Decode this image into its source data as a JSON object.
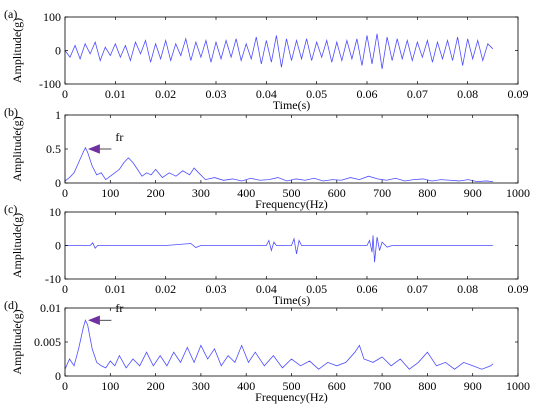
{
  "chart_data": [
    {
      "panel_label": "(a)",
      "type": "line",
      "xlabel": "Time(s)",
      "ylabel": "Amplitude(g)",
      "xlim": [
        0,
        0.09
      ],
      "ylim": [
        -100,
        100
      ],
      "xticks": [
        "0",
        "0.01",
        "0.02",
        "0.03",
        "0.04",
        "0.05",
        "0.06",
        "0.07",
        "0.08",
        "0.09"
      ],
      "yticks": [
        "-100",
        "0",
        "100"
      ],
      "line_color": "#4d4dff",
      "series": [
        {
          "x": [
            0.0,
            0.001,
            0.002,
            0.003,
            0.004,
            0.005,
            0.006,
            0.007,
            0.008,
            0.009,
            0.01,
            0.011,
            0.012,
            0.013,
            0.014,
            0.015,
            0.016,
            0.017,
            0.018,
            0.019,
            0.02,
            0.021,
            0.022,
            0.023,
            0.024,
            0.025,
            0.026,
            0.027,
            0.028,
            0.029,
            0.03,
            0.031,
            0.032,
            0.033,
            0.034,
            0.035,
            0.036,
            0.037,
            0.038,
            0.039,
            0.04,
            0.041,
            0.042,
            0.043,
            0.044,
            0.045,
            0.046,
            0.047,
            0.048,
            0.049,
            0.05,
            0.051,
            0.052,
            0.053,
            0.054,
            0.055,
            0.056,
            0.057,
            0.058,
            0.059,
            0.06,
            0.061,
            0.062,
            0.063,
            0.064,
            0.065,
            0.066,
            0.067,
            0.068,
            0.069,
            0.07,
            0.071,
            0.072,
            0.073,
            0.074,
            0.075,
            0.076,
            0.077,
            0.078,
            0.079,
            0.08,
            0.081,
            0.082,
            0.083,
            0.084,
            0.085
          ],
          "y": [
            0,
            -20,
            15,
            -25,
            20,
            -10,
            25,
            -30,
            10,
            -15,
            20,
            -20,
            15,
            -30,
            25,
            -10,
            30,
            -35,
            20,
            -25,
            30,
            -30,
            20,
            -15,
            35,
            -30,
            25,
            -20,
            30,
            -35,
            25,
            -25,
            30,
            -20,
            35,
            -30,
            20,
            -25,
            40,
            -40,
            30,
            -35,
            45,
            -50,
            35,
            -30,
            30,
            -25,
            35,
            -30,
            25,
            -20,
            30,
            -35,
            25,
            -30,
            30,
            -25,
            35,
            -45,
            45,
            -40,
            50,
            -55,
            40,
            -30,
            35,
            -25,
            30,
            -30,
            25,
            -20,
            30,
            -35,
            25,
            -25,
            30,
            -30,
            40,
            -45,
            35,
            -25,
            30,
            -30,
            20,
            5
          ]
        }
      ]
    },
    {
      "panel_label": "(b)",
      "type": "line",
      "xlabel": "Frequency(Hz)",
      "ylabel": "Amplitude(g)",
      "xlim": [
        0,
        1000
      ],
      "ylim": [
        0,
        1
      ],
      "xticks": [
        "0",
        "100",
        "200",
        "300",
        "400",
        "500",
        "600",
        "700",
        "800",
        "900",
        "1000"
      ],
      "yticks": [
        "0",
        "0.5",
        "1"
      ],
      "annotation": {
        "text": "fr",
        "x": 45,
        "y": 0.5
      },
      "line_color": "#4d4dff",
      "series": [
        {
          "x": [
            0,
            10,
            20,
            30,
            40,
            45,
            50,
            60,
            70,
            80,
            90,
            100,
            110,
            120,
            130,
            140,
            150,
            160,
            170,
            180,
            190,
            200,
            215,
            230,
            245,
            260,
            275,
            285,
            295,
            310,
            330,
            350,
            370,
            390,
            410,
            430,
            450,
            470,
            490,
            510,
            530,
            550,
            570,
            590,
            610,
            630,
            650,
            670,
            690,
            710,
            730,
            750,
            770,
            790,
            810,
            830,
            850,
            870,
            890,
            910,
            930,
            945
          ],
          "y": [
            0.03,
            0.08,
            0.15,
            0.3,
            0.45,
            0.52,
            0.45,
            0.25,
            0.12,
            0.15,
            0.05,
            0.1,
            0.15,
            0.2,
            0.3,
            0.37,
            0.3,
            0.2,
            0.1,
            0.15,
            0.12,
            0.2,
            0.08,
            0.15,
            0.1,
            0.18,
            0.12,
            0.22,
            0.15,
            0.05,
            0.08,
            0.04,
            0.06,
            0.03,
            0.07,
            0.04,
            0.05,
            0.08,
            0.03,
            0.06,
            0.04,
            0.07,
            0.03,
            0.05,
            0.04,
            0.08,
            0.05,
            0.1,
            0.06,
            0.04,
            0.07,
            0.03,
            0.05,
            0.06,
            0.03,
            0.05,
            0.04,
            0.03,
            0.05,
            0.02,
            0.03,
            0.02
          ]
        }
      ]
    },
    {
      "panel_label": "(c)",
      "type": "line",
      "xlabel": "Time(s)",
      "ylabel": "Amplitude(g)",
      "xlim": [
        0,
        0.09
      ],
      "ylim": [
        -10,
        10
      ],
      "xticks": [
        "0",
        "0.01",
        "0.02",
        "0.03",
        "0.04",
        "0.05",
        "0.06",
        "0.07",
        "0.08",
        "0.09"
      ],
      "yticks": [
        "-10",
        "0",
        "10"
      ],
      "line_color": "#4d4dff",
      "series": [
        {
          "x": [
            0.0,
            0.005,
            0.0055,
            0.006,
            0.0065,
            0.01,
            0.015,
            0.02,
            0.025,
            0.026,
            0.027,
            0.03,
            0.035,
            0.04,
            0.0405,
            0.041,
            0.0415,
            0.042,
            0.045,
            0.0455,
            0.046,
            0.0465,
            0.047,
            0.05,
            0.055,
            0.06,
            0.0605,
            0.061,
            0.0612,
            0.0615,
            0.062,
            0.0625,
            0.063,
            0.064,
            0.065,
            0.07,
            0.075,
            0.08,
            0.085
          ],
          "y": [
            0,
            0,
            0.8,
            -0.8,
            0,
            0,
            0,
            0,
            0.6,
            -0.6,
            0,
            0,
            0,
            0,
            1.5,
            -1.5,
            1,
            0,
            0,
            2,
            -2.5,
            1.5,
            0,
            0,
            0,
            0,
            1.5,
            -2,
            3,
            -5,
            2.5,
            -1.5,
            1,
            -0.5,
            0,
            0,
            0,
            0,
            0
          ]
        }
      ]
    },
    {
      "panel_label": "(d)",
      "type": "line",
      "xlabel": "Frequency(Hz)",
      "ylabel": "Amplitude(g)",
      "xlim": [
        0,
        1000
      ],
      "ylim": [
        0,
        0.01
      ],
      "xticks": [
        "0",
        "100",
        "200",
        "300",
        "400",
        "500",
        "600",
        "700",
        "800",
        "900",
        "1000"
      ],
      "yticks": [
        "0",
        "0.005",
        "0.01"
      ],
      "annotation": {
        "text": "fr",
        "x": 45,
        "y": 0.0082
      },
      "line_color": "#4d4dff",
      "series": [
        {
          "x": [
            0,
            10,
            20,
            30,
            40,
            45,
            50,
            60,
            70,
            80,
            90,
            100,
            110,
            120,
            135,
            150,
            165,
            180,
            195,
            210,
            225,
            240,
            255,
            270,
            285,
            300,
            315,
            330,
            345,
            360,
            375,
            390,
            405,
            420,
            440,
            460,
            480,
            500,
            520,
            540,
            560,
            580,
            600,
            620,
            640,
            650,
            660,
            680,
            700,
            720,
            740,
            760,
            780,
            800,
            820,
            840,
            860,
            880,
            900,
            920,
            940,
            945
          ],
          "y": [
            0.001,
            0.0025,
            0.0015,
            0.004,
            0.007,
            0.0082,
            0.0075,
            0.004,
            0.002,
            0.0015,
            0.0012,
            0.0022,
            0.0015,
            0.003,
            0.0012,
            0.0025,
            0.0015,
            0.0035,
            0.0015,
            0.003,
            0.0015,
            0.0035,
            0.002,
            0.0042,
            0.002,
            0.0045,
            0.0025,
            0.004,
            0.0015,
            0.003,
            0.002,
            0.0045,
            0.002,
            0.0035,
            0.0015,
            0.003,
            0.0012,
            0.0025,
            0.0015,
            0.0022,
            0.001,
            0.002,
            0.0015,
            0.002,
            0.0035,
            0.0045,
            0.0025,
            0.002,
            0.0028,
            0.0015,
            0.0025,
            0.001,
            0.002,
            0.0035,
            0.0015,
            0.002,
            0.001,
            0.002,
            0.0015,
            0.001,
            0.0015,
            0.0018
          ]
        }
      ]
    }
  ]
}
